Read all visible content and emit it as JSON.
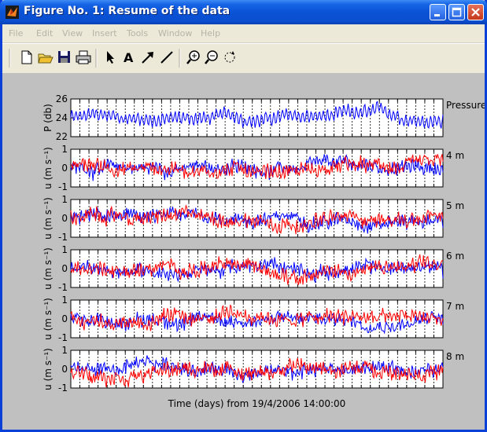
{
  "window": {
    "title": "Figure No. 1: Resume of the data"
  },
  "menu": [
    "File",
    "Edit",
    "View",
    "Insert",
    "Tools",
    "Window",
    "Help"
  ],
  "toolbar": {
    "tools": [
      "new-file-icon",
      "open-folder-icon",
      "save-icon",
      "print-icon",
      "select-arrow-icon",
      "text-insert-icon",
      "arrow-insert-icon",
      "line-insert-icon",
      "zoom-in-icon",
      "zoom-out-icon",
      "rotate-icon"
    ],
    "text_tool_glyph": "A"
  },
  "colors": {
    "series_blue": "#0000ff",
    "series_red": "#ff0000",
    "figure_bg": "#c0c0c0"
  },
  "chart_data": [
    {
      "type": "line",
      "ylabel": "P (db)",
      "side_label": "Pressure",
      "ylim": [
        22,
        26
      ],
      "yticks": [
        "22",
        "24",
        "26"
      ],
      "series": [
        {
          "color": "blue",
          "values_description_amplitude": 0.75
        }
      ]
    },
    {
      "type": "line",
      "ylabel": "u (m s⁻¹)",
      "side_label": "4 m",
      "ylim": [
        -1,
        1
      ],
      "yticks": [
        "-1",
        "0",
        "1"
      ],
      "series": [
        {
          "color": "blue"
        },
        {
          "color": "red"
        }
      ]
    },
    {
      "type": "line",
      "ylabel": "u (m s⁻¹)",
      "side_label": "5 m",
      "ylim": [
        -1,
        1
      ],
      "yticks": [
        "-1",
        "0",
        "1"
      ],
      "series": [
        {
          "color": "blue"
        },
        {
          "color": "red"
        }
      ]
    },
    {
      "type": "line",
      "ylabel": "u (m s⁻¹)",
      "side_label": "6 m",
      "ylim": [
        -1,
        1
      ],
      "yticks": [
        "-1",
        "0",
        "1"
      ],
      "series": [
        {
          "color": "blue"
        },
        {
          "color": "red"
        }
      ]
    },
    {
      "type": "line",
      "ylabel": "u (m s⁻¹)",
      "side_label": "7 m",
      "ylim": [
        -1,
        1
      ],
      "yticks": [
        "-1",
        "0",
        "1"
      ],
      "series": [
        {
          "color": "blue"
        },
        {
          "color": "red"
        }
      ]
    },
    {
      "type": "line",
      "ylabel": "u (m s⁻¹)",
      "side_label": "8 m",
      "ylim": [
        -1,
        1
      ],
      "yticks": [
        "-1",
        "0",
        "1"
      ],
      "series": [
        {
          "color": "blue"
        },
        {
          "color": "red"
        }
      ]
    }
  ],
  "xlabel": "Time (days) from 19/4/2006 14:00:00"
}
